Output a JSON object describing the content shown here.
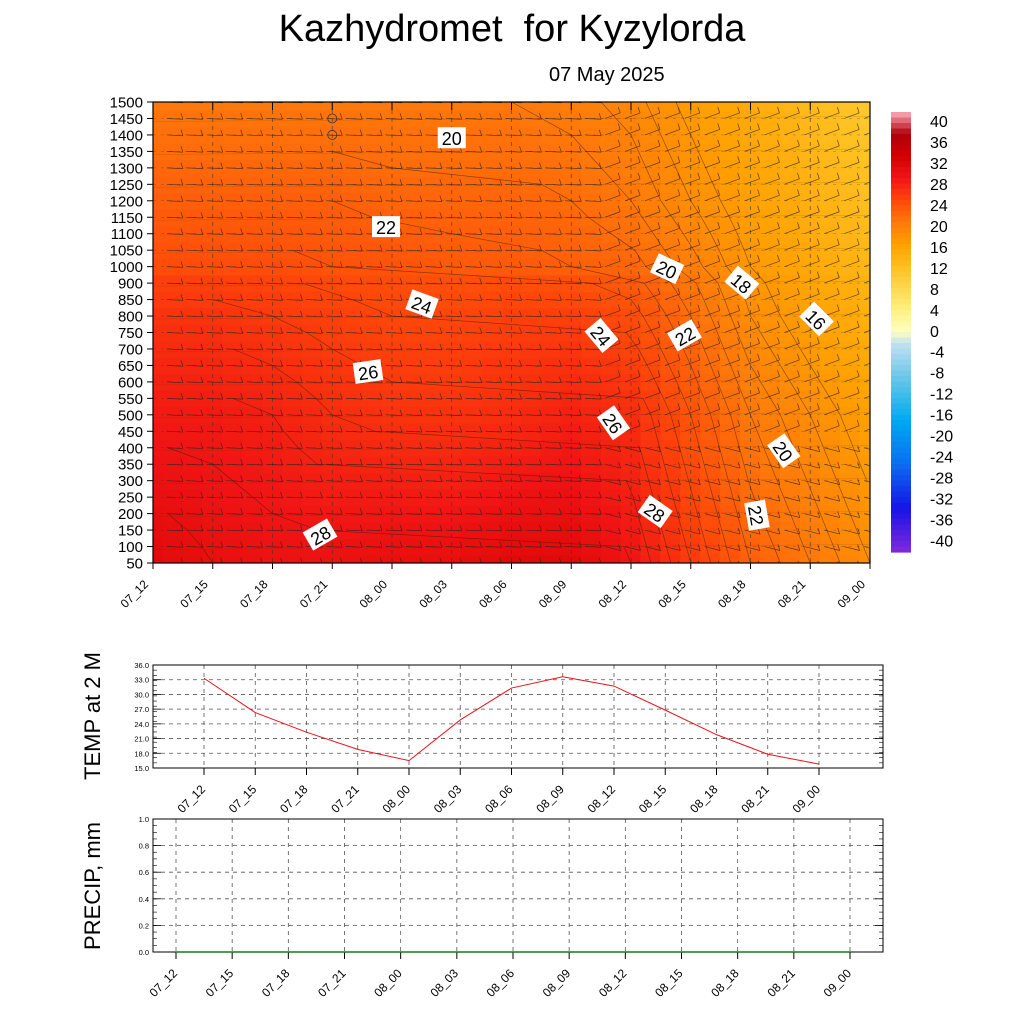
{
  "header": {
    "title": "Kazhydromet  for Kyzylorda",
    "subtitle": "07 May 2025"
  },
  "colors": {
    "line_red": "#e8141b",
    "precip_green": "#1a7a1a",
    "frame": "#000000",
    "grid": "#555555"
  },
  "chart_data": [
    {
      "id": "crosssection",
      "type": "heatmap",
      "title": "",
      "times": [
        "07_12",
        "07_15",
        "07_18",
        "07_21",
        "08_00",
        "08_03",
        "08_06",
        "08_09",
        "08_12",
        "08_15",
        "08_18",
        "08_21",
        "09_00"
      ],
      "levels": [
        50,
        100,
        150,
        200,
        250,
        300,
        350,
        400,
        450,
        500,
        550,
        600,
        650,
        700,
        750,
        800,
        850,
        900,
        1000,
        1050,
        1100,
        1150,
        1200,
        1250,
        1300,
        1350,
        1400,
        1450,
        1500
      ],
      "ylim": [
        50,
        1500
      ],
      "colorbar": {
        "labels": [
          "40",
          "36",
          "32",
          "28",
          "24",
          "20",
          "16",
          "12",
          "8",
          "4",
          "0",
          "-4",
          "-8",
          "-12",
          "-16",
          "-20",
          "-24",
          "-28",
          "-32",
          "-36",
          "-40"
        ],
        "range": [
          -40,
          40
        ]
      },
      "contour_labels": [
        {
          "text": "20",
          "t": 5.0,
          "level": 1390,
          "rot": 0
        },
        {
          "text": "22",
          "t": 3.9,
          "level": 1120,
          "rot": 0
        },
        {
          "text": "24",
          "t": 4.5,
          "level": 835,
          "rot": 20
        },
        {
          "text": "26",
          "t": 3.6,
          "level": 630,
          "rot": -8
        },
        {
          "text": "28",
          "t": 2.8,
          "level": 135,
          "rot": -30
        },
        {
          "text": "20",
          "t": 8.6,
          "level": 985,
          "rot": 25
        },
        {
          "text": "18",
          "t": 9.85,
          "level": 900,
          "rot": 40
        },
        {
          "text": "16",
          "t": 11.1,
          "level": 790,
          "rot": 45
        },
        {
          "text": "24",
          "t": 7.5,
          "level": 740,
          "rot": 50
        },
        {
          "text": "22",
          "t": 8.9,
          "level": 740,
          "rot": -30
        },
        {
          "text": "26",
          "t": 7.7,
          "level": 475,
          "rot": 55
        },
        {
          "text": "28",
          "t": 8.4,
          "level": 205,
          "rot": 35
        },
        {
          "text": "20",
          "t": 10.55,
          "level": 390,
          "rot": 55
        },
        {
          "text": "22",
          "t": 10.1,
          "level": 195,
          "rot": 80
        }
      ],
      "temp_field": {
        "levels": [
          50,
          500,
          800,
          1000,
          1200,
          1500
        ],
        "rows": [
          [
            30,
            29,
            28.5,
            28.5,
            29,
            29,
            30,
            30,
            28,
            25,
            22,
            20,
            18
          ],
          [
            27.5,
            27.5,
            27,
            26,
            25.5,
            25.5,
            26,
            27,
            26,
            23,
            20,
            18,
            16
          ],
          [
            25.5,
            25.5,
            25,
            24.5,
            24,
            24,
            24.5,
            24.5,
            23.5,
            21,
            18,
            16,
            14
          ],
          [
            23.5,
            23.5,
            23.5,
            23,
            23,
            22.5,
            22.5,
            22,
            21.5,
            19.5,
            17,
            15,
            13
          ],
          [
            22,
            22,
            22,
            22,
            21.5,
            21.5,
            21.5,
            21,
            20,
            18,
            16,
            14,
            12
          ],
          [
            20,
            20,
            20,
            20,
            20,
            20,
            20,
            19.5,
            18.5,
            16.5,
            14.5,
            12.5,
            10.5
          ]
        ]
      }
    },
    {
      "id": "temp2m",
      "type": "line",
      "ylabel": "TEMP at 2 M",
      "x": [
        "07_12",
        "07_15",
        "07_18",
        "07_21",
        "08_00",
        "08_03",
        "08_06",
        "08_09",
        "08_12",
        "08_15",
        "08_18",
        "08_21",
        "09_00"
      ],
      "series": [
        {
          "values": [
            33.3,
            26.3,
            22.3,
            18.8,
            16.5,
            24.8,
            31.3,
            33.6,
            31.7,
            26.8,
            21.8,
            17.8,
            15.8
          ]
        }
      ],
      "ylim": [
        15,
        36
      ],
      "yticks": [
        "15.0",
        "18.0",
        "21.0",
        "24.0",
        "27.0",
        "30.0",
        "33.0",
        "36.0"
      ]
    },
    {
      "id": "precip",
      "type": "line",
      "ylabel": "PRECIP, mm",
      "x": [
        "07_12",
        "07_15",
        "07_18",
        "07_21",
        "08_00",
        "08_03",
        "08_06",
        "08_09",
        "08_12",
        "08_15",
        "08_18",
        "08_21",
        "09_00"
      ],
      "series": [
        {
          "values": [
            0,
            0,
            0,
            0,
            0,
            0,
            0,
            0,
            0,
            0,
            0,
            0,
            0
          ]
        }
      ],
      "ylim": [
        0,
        1
      ],
      "yticks": [
        "0.0",
        "0.2",
        "0.4",
        "0.6",
        "0.8",
        "1.0"
      ]
    }
  ]
}
